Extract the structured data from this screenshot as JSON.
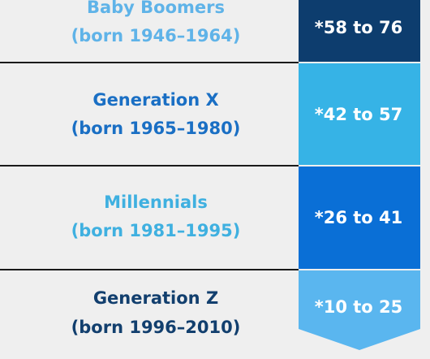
{
  "rows": [
    {
      "generation": "Baby Boomers",
      "born": "(born 1946–1964)",
      "ages": "*58 to 76"
    },
    {
      "generation": "Generation X",
      "born": "(born 1965–1980)",
      "ages": "*42 to 57"
    },
    {
      "generation": "Millennials",
      "born": "(born 1981–1995)",
      "ages": "*26 to 41"
    },
    {
      "generation": "Generation Z",
      "born": "(born 1996–2010)",
      "ages": "*10 to 25"
    }
  ]
}
